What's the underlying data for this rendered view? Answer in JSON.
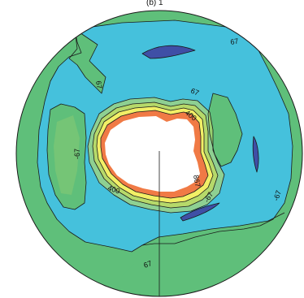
{
  "header": {
    "clipped_title": "(b) 1"
  },
  "map": {
    "projection": "south polar stereographic",
    "colors": {
      "outer_band": "#5fbf7a",
      "ocean_band": "#45c1dc",
      "low_patch": "#3f4fa6",
      "ring_yellow_green": "#b6d96a",
      "ring_yellow": "#f2ef66",
      "ring_orange": "#f07a45",
      "land_mask": "#ffffff",
      "contour": "#1a1a1a"
    },
    "contour_labels": [
      {
        "id": "label-top-right",
        "text": "67"
      },
      {
        "id": "label-left",
        "text": "67"
      },
      {
        "id": "label-upper-inner",
        "text": "67"
      },
      {
        "id": "label-far-left",
        "text": "-67"
      },
      {
        "id": "label-inner-400-top",
        "text": "400"
      },
      {
        "id": "label-inner-867",
        "text": "867"
      },
      {
        "id": "label-right-inner",
        "text": "-67"
      },
      {
        "id": "label-inner-400-bottom",
        "text": "400"
      },
      {
        "id": "label-far-right",
        "text": "-67"
      },
      {
        "id": "label-bottom",
        "text": "67"
      }
    ]
  }
}
